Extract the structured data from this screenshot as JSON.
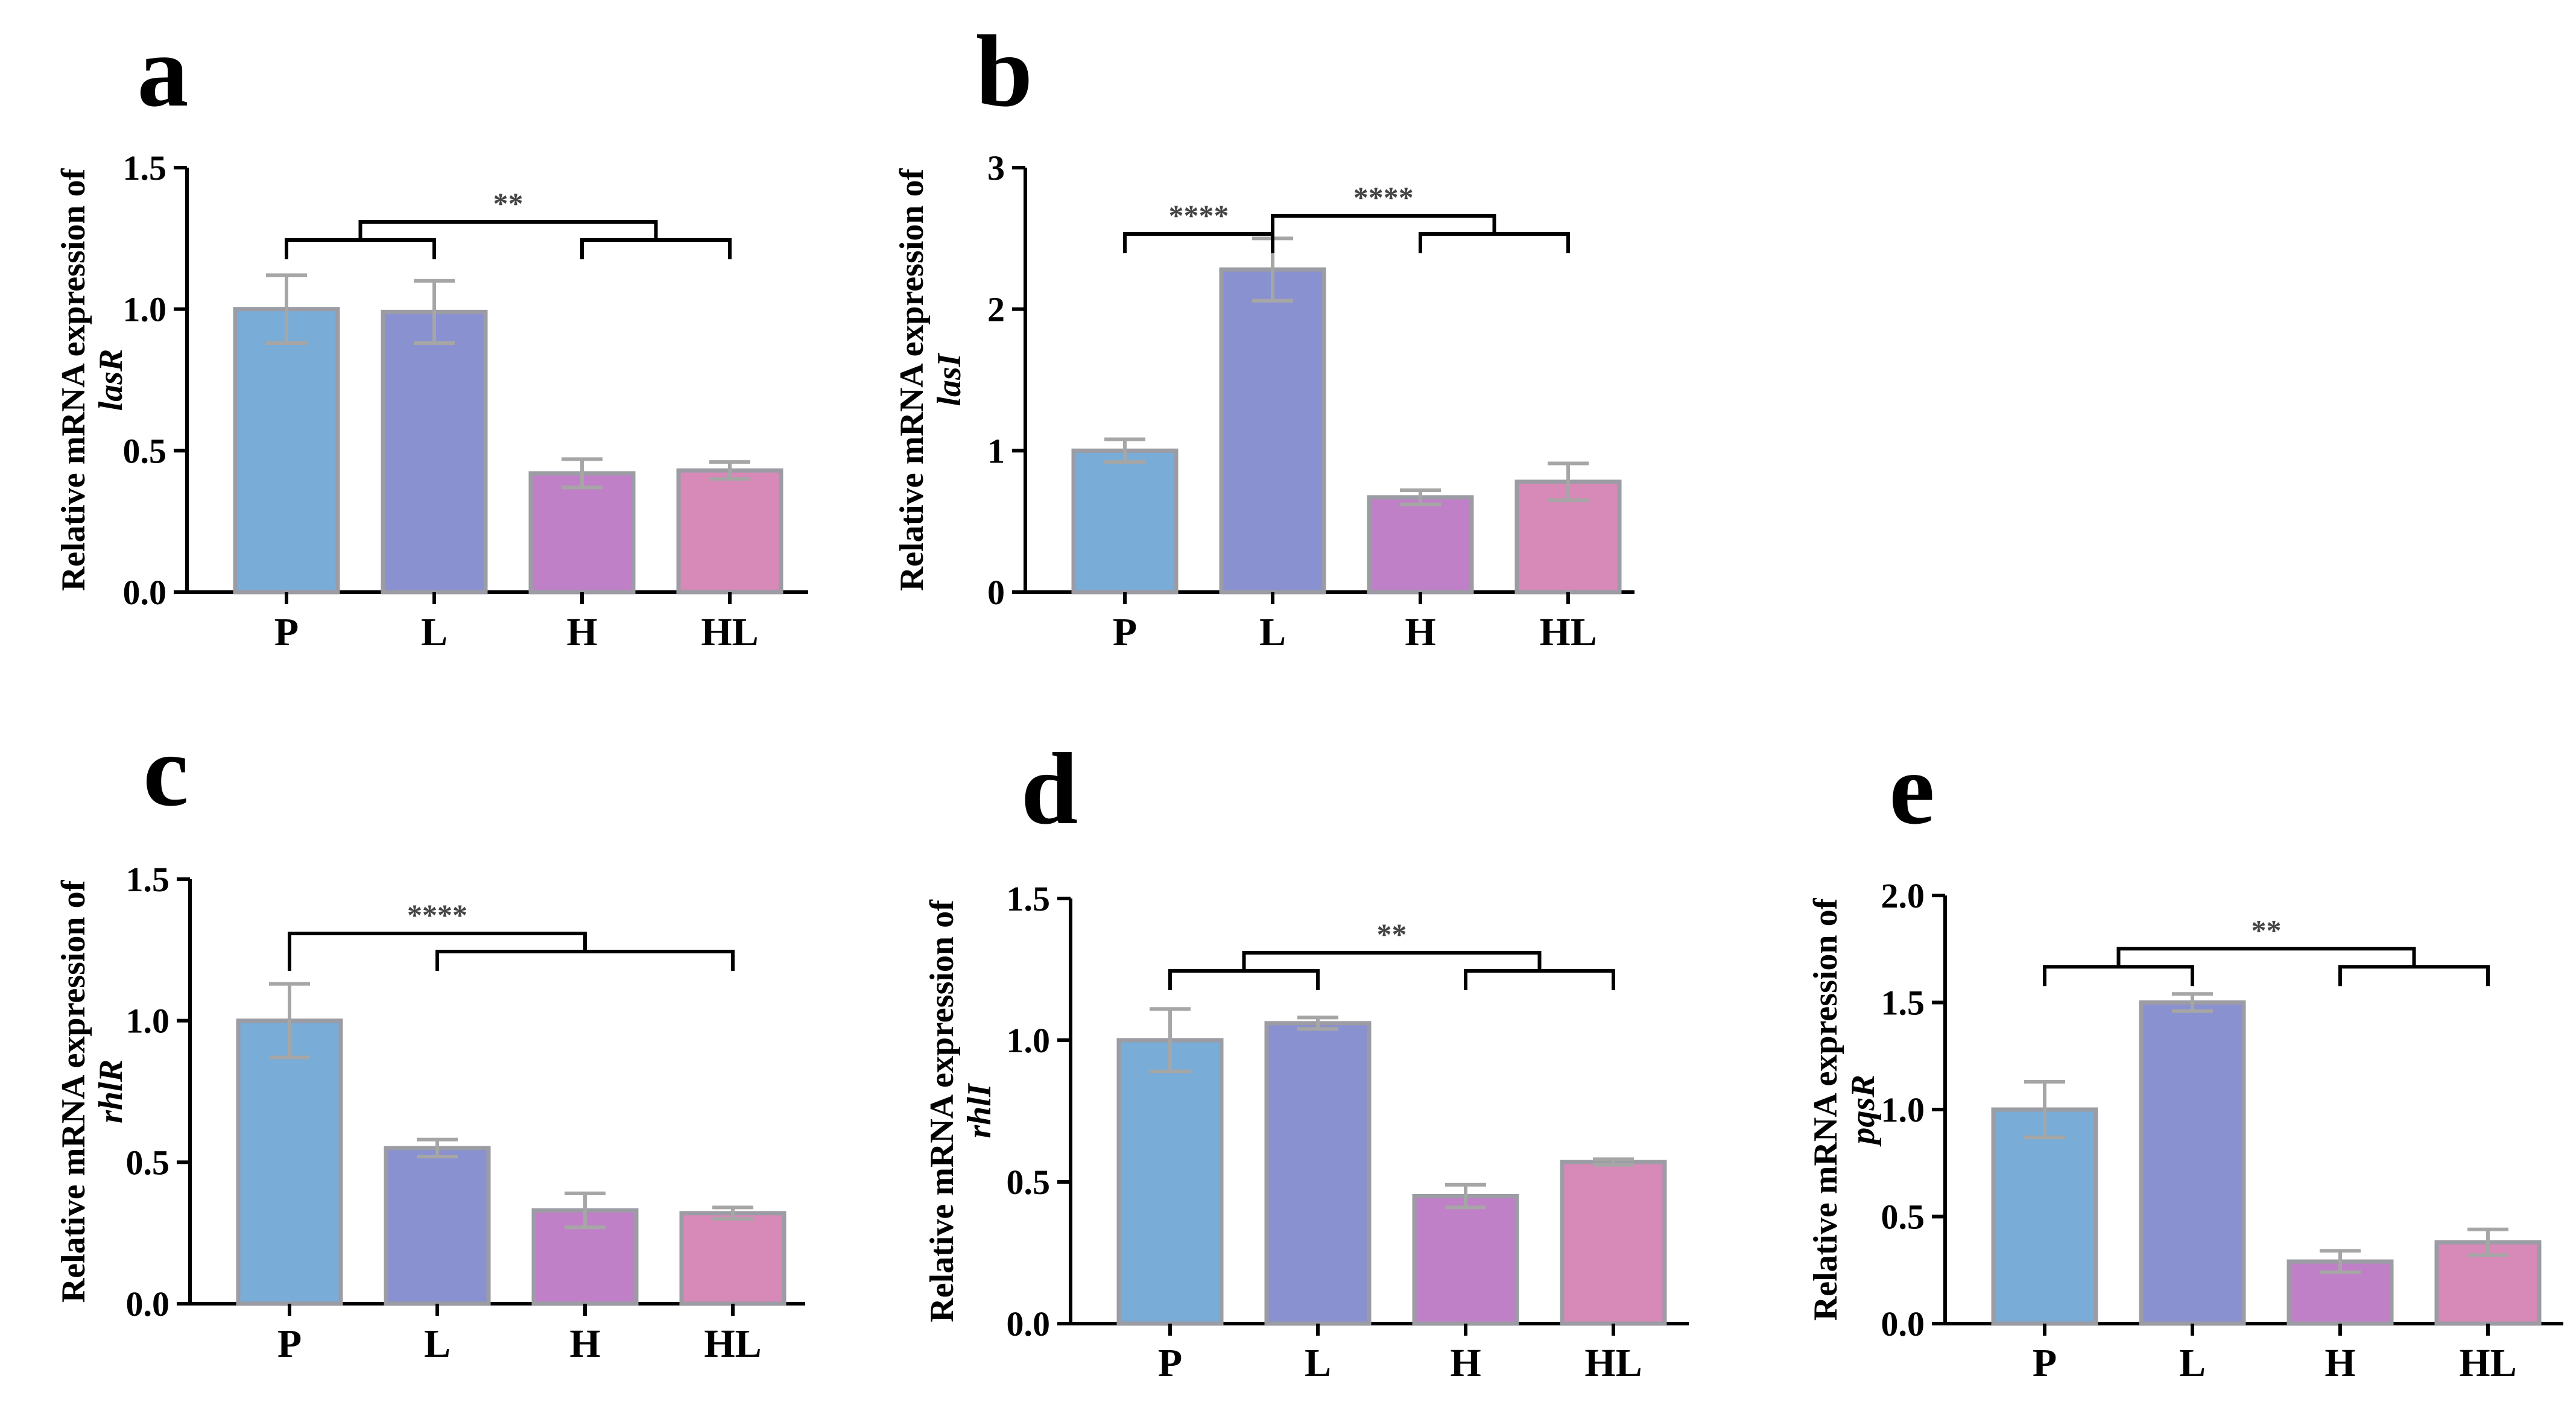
{
  "figure": {
    "ylabel_prefix": "Relative mRNA expression of",
    "colors": {
      "P": "#79acd6",
      "L": "#8991d0",
      "H": "#c080c7",
      "HL": "#d789b8",
      "bar_edge": "#9c9ca4",
      "error": "#a6a6a6",
      "axis": "#000000",
      "bracket": "#000000"
    }
  },
  "chart_data": [
    {
      "type": "bar",
      "panel": "a",
      "gene": "lasR",
      "ylabel": "Relative mRNA expression of lasR",
      "categories": [
        "P",
        "L",
        "H",
        "HL"
      ],
      "values": [
        1.0,
        0.99,
        0.42,
        0.43
      ],
      "errors": [
        0.12,
        0.11,
        0.05,
        0.03
      ],
      "ylim": [
        0,
        1.5
      ],
      "yticks": [
        "0.0",
        "0.5",
        "1.0",
        "1.5"
      ],
      "significance": [
        {
          "label": "**",
          "left": [
            "P",
            "L"
          ],
          "right": [
            "H",
            "HL"
          ]
        }
      ]
    },
    {
      "type": "bar",
      "panel": "b",
      "gene": "lasI",
      "ylabel": "Relative mRNA expression of lasI",
      "categories": [
        "P",
        "L",
        "H",
        "HL"
      ],
      "values": [
        1.0,
        2.28,
        0.67,
        0.78
      ],
      "errors": [
        0.08,
        0.22,
        0.05,
        0.13
      ],
      "ylim": [
        0,
        3
      ],
      "yticks": [
        "0",
        "1",
        "2",
        "3"
      ],
      "significance": [
        {
          "label": "****",
          "left": [
            "P"
          ],
          "right": [
            "L"
          ]
        },
        {
          "label": "****",
          "left": [
            "L"
          ],
          "right": [
            "H",
            "HL"
          ]
        }
      ]
    },
    {
      "type": "bar",
      "panel": "c",
      "gene": "rhlR",
      "ylabel": "Relative mRNA expression of rhlR",
      "categories": [
        "P",
        "L",
        "H",
        "HL"
      ],
      "values": [
        1.0,
        0.55,
        0.33,
        0.32
      ],
      "errors": [
        0.13,
        0.03,
        0.06,
        0.02
      ],
      "ylim": [
        0,
        1.5
      ],
      "yticks": [
        "0.0",
        "0.5",
        "1.0",
        "1.5"
      ],
      "significance": [
        {
          "label": "****",
          "left": [
            "P"
          ],
          "right": [
            "L",
            "HL"
          ]
        }
      ]
    },
    {
      "type": "bar",
      "panel": "d",
      "gene": "rhlI",
      "ylabel": "Relative mRNA expression of rhlI",
      "categories": [
        "P",
        "L",
        "H",
        "HL"
      ],
      "values": [
        1.0,
        1.06,
        0.45,
        0.57
      ],
      "errors": [
        0.11,
        0.02,
        0.04,
        0.01
      ],
      "ylim": [
        0,
        1.5
      ],
      "yticks": [
        "0.0",
        "0.5",
        "1.0",
        "1.5"
      ],
      "significance": [
        {
          "label": "**",
          "left": [
            "P",
            "L"
          ],
          "right": [
            "H",
            "HL"
          ]
        }
      ]
    },
    {
      "type": "bar",
      "panel": "e",
      "gene": "pqsR",
      "ylabel": "Relative mRNA expression of pqsR",
      "categories": [
        "P",
        "L",
        "H",
        "HL"
      ],
      "values": [
        1.0,
        1.5,
        0.29,
        0.38
      ],
      "errors": [
        0.13,
        0.04,
        0.05,
        0.06
      ],
      "ylim": [
        0,
        2.0
      ],
      "yticks": [
        "0.0",
        "0.5",
        "1.0",
        "1.5",
        "2.0"
      ],
      "significance": [
        {
          "label": "**",
          "left": [
            "P",
            "L"
          ],
          "right": [
            "H",
            "HL"
          ]
        }
      ]
    }
  ]
}
